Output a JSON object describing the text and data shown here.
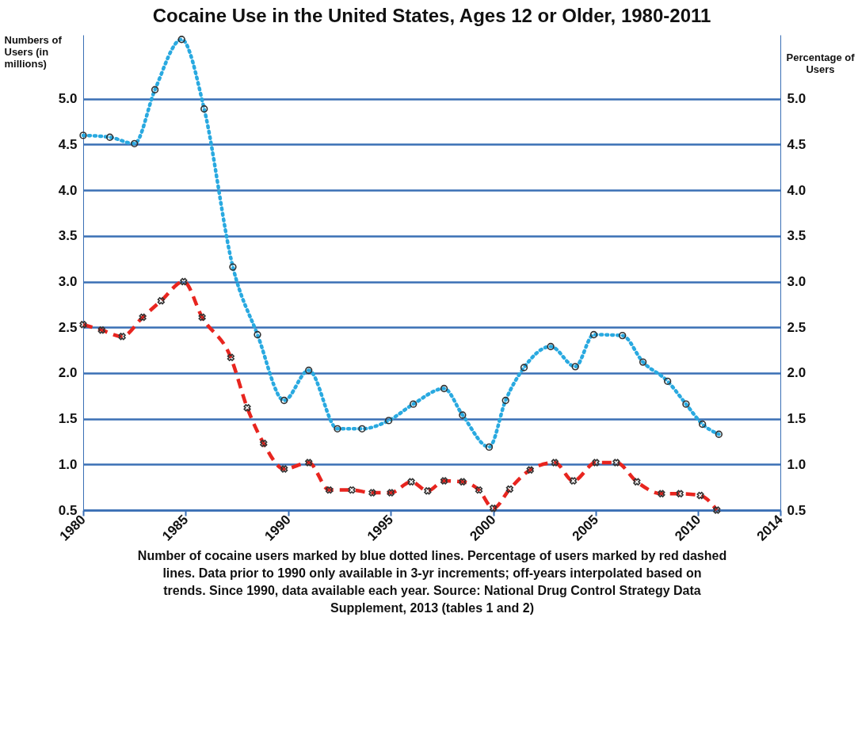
{
  "chart_data": {
    "type": "line",
    "title": "Cocaine Use in the United States, Ages 12 or Older, 1980-2011",
    "ylabel": "Numbers of Users (in millions)",
    "y2label": "Percentage of Users",
    "annotations": [
      "Number of cocaine users marked by blue dotted lines. Percentage of users marked by red dashed lines. Data prior to 1990 only available in 3-yr increments; off-years interpolated based on trends. Since 1990, data available each year. Source: National Drug Control Strategy Data Supplement, 2013 (tables 1 and 2)"
    ],
    "xlim": [
      1980,
      2014
    ],
    "xticks": [
      1980,
      1985,
      1990,
      1995,
      2000,
      2005,
      2010,
      2014
    ],
    "ylim": [
      0.5,
      5.7
    ],
    "yticks": [
      0.5,
      {
        "value": 1,
        "label": "1.0"
      },
      1.5,
      {
        "value": 2,
        "label": "2.0"
      },
      2.5,
      {
        "value": 3,
        "label": "3.0"
      },
      3.5,
      {
        "value": 4,
        "label": "4.0"
      },
      4.5,
      {
        "value": 5,
        "label": "5.0"
      }
    ],
    "y2lim": [
      0.5,
      5.7
    ],
    "y2ticks": [
      0.5,
      {
        "value": 1,
        "label": "1.0"
      },
      1.5,
      {
        "value": 2,
        "label": "2.0"
      },
      2.5,
      {
        "value": 3,
        "label": "3.0"
      },
      3.5,
      {
        "value": 4,
        "label": "4.0"
      },
      4.5,
      {
        "value": 5,
        "label": "5.0"
      }
    ],
    "grid": "y",
    "series": [
      {
        "color": "#29a9e0",
        "marker": "circle",
        "line_style": "dotted",
        "x": [
          1980,
          1981.3,
          1982.5,
          1983.5,
          1984.8,
          1985.9,
          1987.3,
          1988.5,
          1989.8,
          1991,
          1992.4,
          1993.6,
          1994.9,
          1996.1,
          1997.6,
          1998.5,
          1999.8,
          2000.6,
          2001.5,
          2002.8,
          2004,
          2004.9,
          2006.3,
          2007.3,
          2008.5,
          2009.4,
          2010.2,
          2011
        ],
        "values": [
          4.6,
          4.58,
          4.51,
          5.1,
          5.65,
          4.89,
          3.16,
          2.42,
          1.7,
          2.03,
          1.39,
          1.39,
          1.48,
          1.66,
          1.83,
          1.54,
          1.19,
          1.7,
          2.06,
          2.29,
          2.07,
          2.42,
          2.41,
          2.12,
          1.91,
          1.66,
          1.44,
          1.33
        ]
      },
      {
        "color": "#e8251f",
        "marker": "cross",
        "line_style": "dashed",
        "axis": "y2",
        "x": [
          1980,
          1980.9,
          1981.9,
          1982.9,
          1983.8,
          1984.9,
          1985.8,
          1987.2,
          1988,
          1988.8,
          1989.8,
          1991,
          1992,
          1993.1,
          1994.1,
          1995,
          1996,
          1996.8,
          1997.6,
          1998.5,
          1999.3,
          2000,
          2000.8,
          2001.8,
          2003,
          2003.9,
          2005,
          2006,
          2007,
          2008.2,
          2009.1,
          2010.1,
          2010.9
        ],
        "values": [
          2.53,
          2.47,
          2.4,
          2.61,
          2.79,
          3.0,
          2.61,
          2.17,
          1.62,
          1.23,
          0.95,
          1.02,
          0.72,
          0.72,
          0.69,
          0.69,
          0.81,
          0.71,
          0.82,
          0.81,
          0.72,
          0.52,
          0.73,
          0.94,
          1.02,
          0.82,
          1.02,
          1.02,
          0.81,
          0.68,
          0.68,
          0.66,
          0.5
        ]
      }
    ]
  }
}
